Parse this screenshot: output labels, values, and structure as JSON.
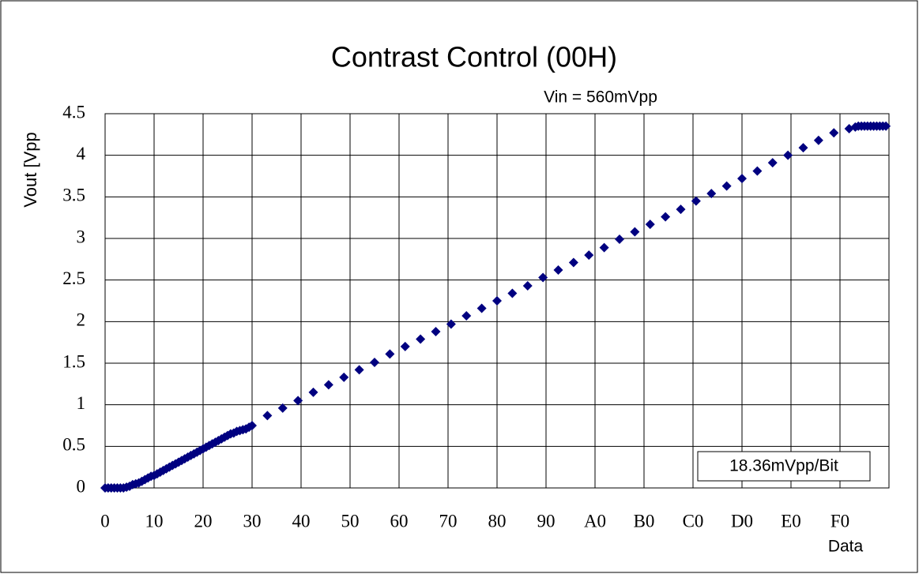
{
  "chart_data": {
    "type": "scatter",
    "title": "Contrast Control (00H)",
    "subtitle": "Vin = 560mVpp",
    "y_label": "Vout [Vpp",
    "x_label": "Data",
    "annotation": "18.36mVpp/Bit",
    "color": "#000080",
    "grid": true,
    "xlim": [
      0,
      256
    ],
    "ylim": [
      0,
      4.5
    ],
    "xticks": [
      0,
      {
        "value": 16,
        "label": "10"
      },
      {
        "value": 32,
        "label": "20"
      },
      {
        "value": 48,
        "label": "30"
      },
      {
        "value": 64,
        "label": "40"
      },
      {
        "value": 80,
        "label": "50"
      },
      {
        "value": 96,
        "label": "60"
      },
      {
        "value": 112,
        "label": "70"
      },
      {
        "value": 128,
        "label": "80"
      },
      {
        "value": 144,
        "label": "90"
      },
      {
        "value": 160,
        "label": "A0"
      },
      {
        "value": 176,
        "label": "B0"
      },
      {
        "value": 192,
        "label": "C0"
      },
      {
        "value": 208,
        "label": "D0"
      },
      {
        "value": 224,
        "label": "E0"
      },
      {
        "value": 240,
        "label": "F0"
      }
    ],
    "yticks": [
      0,
      0.5,
      1,
      1.5,
      2,
      2.5,
      3,
      3.5,
      4,
      4.5
    ],
    "x": [
      0,
      1,
      2,
      3,
      4,
      5,
      6,
      7,
      8,
      9,
      10,
      11,
      12,
      13,
      14,
      15,
      16,
      17,
      18,
      19,
      20,
      21,
      22,
      23,
      24,
      25,
      26,
      27,
      28,
      29,
      30,
      31,
      32,
      33,
      34,
      35,
      36,
      37,
      38,
      39,
      40,
      41,
      42,
      43,
      44,
      45,
      46,
      47,
      48,
      53,
      58,
      63,
      68,
      73,
      78,
      83,
      88,
      93,
      98,
      103,
      108,
      113,
      118,
      123,
      128,
      133,
      138,
      143,
      148,
      153,
      158,
      163,
      168,
      173,
      178,
      183,
      188,
      193,
      198,
      203,
      208,
      213,
      218,
      223,
      228,
      233,
      238,
      243,
      245,
      246,
      247,
      248,
      249,
      250,
      251,
      252,
      253,
      254,
      255
    ],
    "values": [
      0,
      0,
      0,
      0,
      0,
      0,
      0,
      0.01,
      0.02,
      0.04,
      0.05,
      0.06,
      0.08,
      0.1,
      0.12,
      0.14,
      0.15,
      0.17,
      0.19,
      0.21,
      0.23,
      0.25,
      0.27,
      0.29,
      0.31,
      0.33,
      0.35,
      0.37,
      0.39,
      0.41,
      0.43,
      0.45,
      0.47,
      0.49,
      0.51,
      0.53,
      0.55,
      0.57,
      0.59,
      0.61,
      0.63,
      0.65,
      0.66,
      0.68,
      0.69,
      0.7,
      0.71,
      0.73,
      0.75,
      0.87,
      0.96,
      1.05,
      1.15,
      1.24,
      1.33,
      1.42,
      1.51,
      1.61,
      1.7,
      1.79,
      1.88,
      1.97,
      2.07,
      2.16,
      2.25,
      2.34,
      2.43,
      2.53,
      2.62,
      2.71,
      2.8,
      2.89,
      2.99,
      3.08,
      3.17,
      3.26,
      3.35,
      3.45,
      3.54,
      3.63,
      3.72,
      3.81,
      3.91,
      4.0,
      4.09,
      4.18,
      4.27,
      4.32,
      4.34,
      4.35,
      4.35,
      4.35,
      4.35,
      4.35,
      4.35,
      4.35,
      4.35,
      4.35,
      4.35
    ]
  }
}
